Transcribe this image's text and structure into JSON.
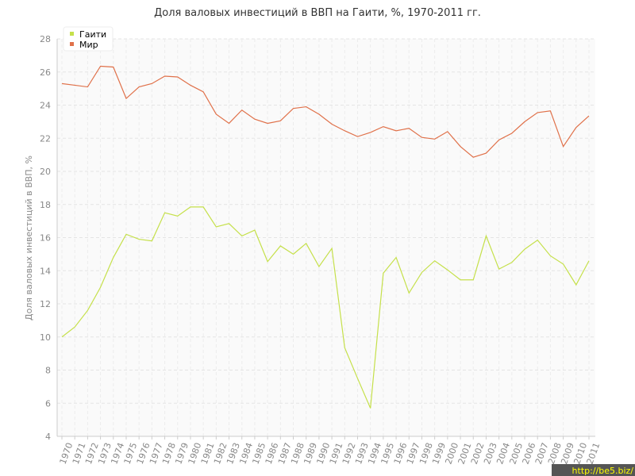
{
  "chart_data": {
    "type": "line",
    "title": "Доля валовых инвестиций в ВВП на Гаити, %, 1970-2011 гг.",
    "y_label": "Доля валовых инвестиций в ВВП, %",
    "categories": [
      "1970",
      "1971",
      "1972",
      "1973",
      "1974",
      "1975",
      "1976",
      "1977",
      "1978",
      "1979",
      "1980",
      "1981",
      "1982",
      "1983",
      "1984",
      "1985",
      "1986",
      "1987",
      "1988",
      "1989",
      "1990",
      "1991",
      "1992",
      "1993",
      "1994",
      "1995",
      "1996",
      "1997",
      "1998",
      "1999",
      "2000",
      "2001",
      "2002",
      "2003",
      "2004",
      "2005",
      "2006",
      "2007",
      "2008",
      "2009",
      "2010",
      "2011"
    ],
    "series": [
      {
        "name": "Гаити",
        "color": "#c5e04a",
        "values": [
          10.0,
          10.6,
          11.6,
          13.0,
          14.8,
          16.2,
          15.9,
          15.8,
          17.5,
          17.3,
          17.85,
          17.85,
          16.65,
          16.85,
          16.1,
          16.45,
          14.55,
          15.5,
          15.0,
          15.65,
          14.25,
          15.35,
          9.35,
          7.5,
          5.7,
          13.85,
          14.8,
          12.65,
          13.9,
          14.6,
          14.05,
          13.45,
          13.45,
          16.1,
          14.1,
          14.5,
          15.3,
          15.85,
          14.9,
          14.4,
          13.15,
          14.6
        ]
      },
      {
        "name": "Мир",
        "color": "#e0714a",
        "values": [
          25.3,
          25.2,
          25.1,
          26.35,
          26.3,
          24.4,
          25.1,
          25.3,
          25.75,
          25.7,
          25.2,
          24.8,
          23.45,
          22.9,
          23.7,
          23.15,
          22.9,
          23.05,
          23.8,
          23.9,
          23.45,
          22.85,
          22.45,
          22.1,
          22.35,
          22.7,
          22.45,
          22.6,
          22.05,
          21.95,
          22.4,
          21.5,
          20.85,
          21.1,
          21.9,
          22.3,
          23.0,
          23.55,
          23.65,
          21.5,
          22.65,
          23.35
        ]
      }
    ],
    "ylim": [
      4,
      28
    ],
    "yticks": [
      4,
      6,
      8,
      10,
      12,
      14,
      16,
      18,
      20,
      22,
      24,
      26,
      28
    ],
    "grid": true,
    "legend": "top-left",
    "watermark": "http://be5.biz/"
  }
}
